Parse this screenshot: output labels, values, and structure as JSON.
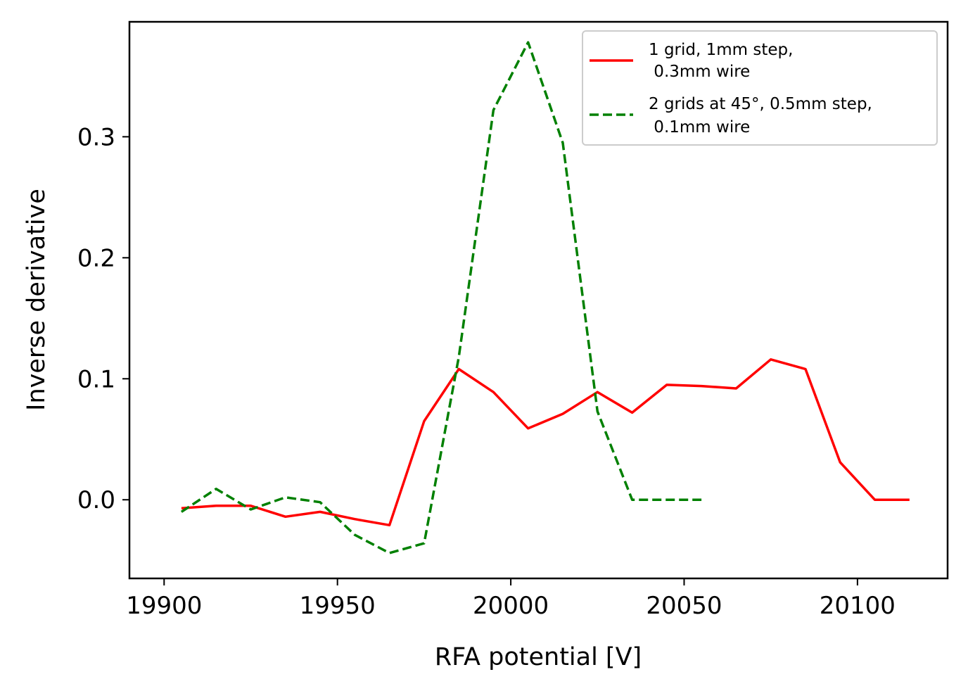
{
  "chart_data": {
    "type": "line",
    "title": "",
    "xlabel": "RFA potential [V]",
    "ylabel": "Inverse derivative",
    "xlim": [
      19890,
      20126
    ],
    "ylim": [
      -0.065,
      0.395
    ],
    "xticks": [
      19900,
      19950,
      20000,
      20050,
      20100
    ],
    "xtick_labels": [
      "19900",
      "19950",
      "20000",
      "20050",
      "20100"
    ],
    "yticks": [
      0.0,
      0.1,
      0.2,
      0.3
    ],
    "ytick_labels": [
      "0.0",
      "0.1",
      "0.2",
      "0.3"
    ],
    "grid": false,
    "legend_position": "top-right",
    "series": [
      {
        "name": "1 grid, 1mm step,\n 0.3mm wire",
        "legend_lines": [
          "1 grid, 1mm step,",
          " 0.3mm wire"
        ],
        "color": "#ff0000",
        "style": "solid",
        "x": [
          19905,
          19915,
          19925,
          19935,
          19945,
          19955,
          19965,
          19975,
          19985,
          19995,
          20005,
          20015,
          20025,
          20035,
          20045,
          20055,
          20065,
          20075,
          20085,
          20095,
          20105,
          20115
        ],
        "y": [
          -0.007,
          -0.005,
          -0.005,
          -0.014,
          -0.01,
          -0.016,
          -0.021,
          0.065,
          0.108,
          0.089,
          0.059,
          0.071,
          0.089,
          0.072,
          0.095,
          0.094,
          0.092,
          0.116,
          0.108,
          0.031,
          0.0,
          0.0
        ]
      },
      {
        "name": "2 grids at 45°, 0.5mm step,\n 0.1mm wire",
        "legend_lines": [
          "2 grids at 45°, 0.5mm step,",
          " 0.1mm wire"
        ],
        "color": "#008000",
        "style": "dashed",
        "x": [
          19905,
          19915,
          19925,
          19935,
          19945,
          19955,
          19965,
          19975,
          19985,
          19995,
          20005,
          20015,
          20025,
          20035,
          20045,
          20055
        ],
        "y": [
          -0.01,
          0.009,
          -0.008,
          0.002,
          -0.002,
          -0.029,
          -0.044,
          -0.036,
          0.118,
          0.322,
          0.378,
          0.295,
          0.073,
          0.0,
          0.0,
          0.0
        ]
      }
    ]
  }
}
